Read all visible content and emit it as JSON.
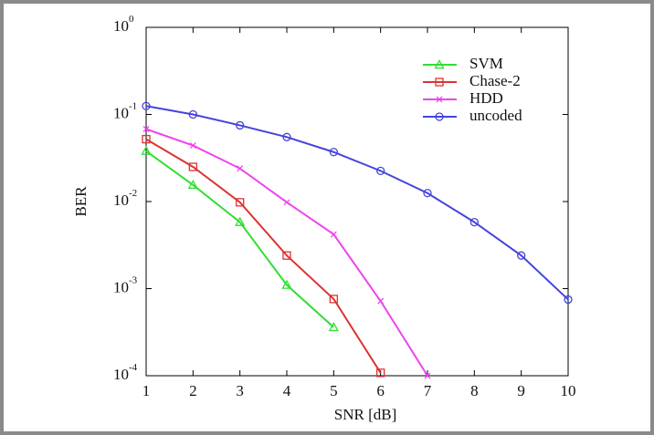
{
  "chart_data": {
    "type": "line",
    "x_label": "SNR [dB]",
    "y_label": "BER",
    "x": [
      1,
      2,
      3,
      4,
      5,
      6,
      7,
      8,
      9,
      10
    ],
    "xlim": [
      1,
      10
    ],
    "xticks": [
      1,
      2,
      3,
      4,
      5,
      6,
      7,
      8,
      9,
      10
    ],
    "ylim": [
      0.0001,
      1
    ],
    "y_scale": "log",
    "yticks": [
      {
        "value": 0.0001,
        "label": "10",
        "exponent": "-4"
      },
      {
        "value": 0.001,
        "label": "10",
        "exponent": "-3"
      },
      {
        "value": 0.01,
        "label": "10",
        "exponent": "-2"
      },
      {
        "value": 0.1,
        "label": "10",
        "exponent": "-1"
      },
      {
        "value": 1,
        "label": "10",
        "exponent": "0"
      }
    ],
    "legend_position": "upper right",
    "series": [
      {
        "name": "SVM",
        "color": "#33dd33",
        "marker": "triangle",
        "values": [
          0.038,
          0.0155,
          0.0058,
          0.0011,
          0.00036,
          null,
          null,
          null,
          null,
          null
        ]
      },
      {
        "name": "Chase-2",
        "color": "#dd3333",
        "marker": "square",
        "values": [
          0.052,
          0.025,
          0.0098,
          0.0024,
          0.00076,
          0.000108,
          null,
          null,
          null,
          null
        ]
      },
      {
        "name": "HDD",
        "color": "#ee44ee",
        "marker": "x",
        "values": [
          0.068,
          0.044,
          0.024,
          0.0098,
          0.0042,
          0.00072,
          0.0001,
          null,
          null,
          null
        ]
      },
      {
        "name": "uncoded",
        "color": "#4444dd",
        "marker": "circle",
        "values": [
          0.125,
          0.1,
          0.075,
          0.055,
          0.037,
          0.0225,
          0.0125,
          0.0058,
          0.0024,
          0.00075
        ]
      }
    ]
  }
}
